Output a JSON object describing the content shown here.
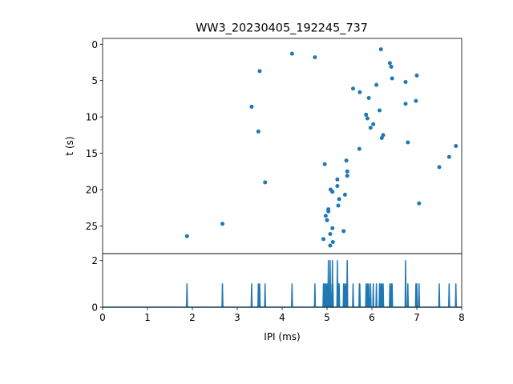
{
  "chart_data": [
    {
      "type": "scatter",
      "title": "WW3_20230405_192245_737",
      "xlabel": "",
      "ylabel": "t (s)",
      "xlim": [
        0,
        8
      ],
      "ylim": [
        28.8,
        -0.8
      ],
      "y_inverted": true,
      "yticks": [
        0,
        5,
        10,
        15,
        20,
        25
      ],
      "color": "#1f77b4",
      "points": [
        [
          6.2,
          0.7
        ],
        [
          4.22,
          1.3
        ],
        [
          4.73,
          1.8
        ],
        [
          6.4,
          2.6
        ],
        [
          6.43,
          3.1
        ],
        [
          3.5,
          3.7
        ],
        [
          7.0,
          4.3
        ],
        [
          6.45,
          4.7
        ],
        [
          6.75,
          5.2
        ],
        [
          6.1,
          5.6
        ],
        [
          5.58,
          6.1
        ],
        [
          5.73,
          6.6
        ],
        [
          5.93,
          7.4
        ],
        [
          6.98,
          7.8
        ],
        [
          6.75,
          8.2
        ],
        [
          3.32,
          8.6
        ],
        [
          6.17,
          9.1
        ],
        [
          5.87,
          9.7
        ],
        [
          5.9,
          10.2
        ],
        [
          6.03,
          11.0
        ],
        [
          5.97,
          11.5
        ],
        [
          3.47,
          12.0
        ],
        [
          6.25,
          12.5
        ],
        [
          6.22,
          12.9
        ],
        [
          6.8,
          13.5
        ],
        [
          7.87,
          14.0
        ],
        [
          5.72,
          14.4
        ],
        [
          7.72,
          15.5
        ],
        [
          5.43,
          16.0
        ],
        [
          4.95,
          16.5
        ],
        [
          7.5,
          16.9
        ],
        [
          5.45,
          17.5
        ],
        [
          5.45,
          18.1
        ],
        [
          5.23,
          18.6
        ],
        [
          3.62,
          19.0
        ],
        [
          5.23,
          19.5
        ],
        [
          5.08,
          20.0
        ],
        [
          5.12,
          20.3
        ],
        [
          5.4,
          20.7
        ],
        [
          5.27,
          21.3
        ],
        [
          7.05,
          21.9
        ],
        [
          5.25,
          22.2
        ],
        [
          5.03,
          22.7
        ],
        [
          5.03,
          23.0
        ],
        [
          4.97,
          23.6
        ],
        [
          5.0,
          24.2
        ],
        [
          2.67,
          24.7
        ],
        [
          5.12,
          25.3
        ],
        [
          5.37,
          25.7
        ],
        [
          5.07,
          26.1
        ],
        [
          1.88,
          26.4
        ],
        [
          4.92,
          26.8
        ],
        [
          5.13,
          27.2
        ],
        [
          5.07,
          27.7
        ]
      ]
    },
    {
      "type": "line",
      "title": "",
      "xlabel": "IPI (ms)",
      "ylabel": "",
      "xlim": [
        0,
        8
      ],
      "ylim": [
        0,
        2.3
      ],
      "xticks": [
        0,
        1,
        2,
        3,
        4,
        5,
        6,
        7,
        8
      ],
      "yticks": [
        0,
        2
      ],
      "color": "#1f77b4",
      "bin_width": 0.02,
      "baseline": 0,
      "spikes": [
        [
          1.88,
          1
        ],
        [
          2.67,
          1
        ],
        [
          3.32,
          1
        ],
        [
          3.47,
          1
        ],
        [
          3.5,
          1
        ],
        [
          3.62,
          1
        ],
        [
          4.22,
          1
        ],
        [
          4.73,
          1
        ],
        [
          4.92,
          1
        ],
        [
          4.95,
          1
        ],
        [
          4.97,
          1
        ],
        [
          5.0,
          1
        ],
        [
          5.03,
          2
        ],
        [
          5.07,
          2
        ],
        [
          5.08,
          1
        ],
        [
          5.12,
          2
        ],
        [
          5.13,
          1
        ],
        [
          5.23,
          2
        ],
        [
          5.25,
          1
        ],
        [
          5.27,
          1
        ],
        [
          5.37,
          1
        ],
        [
          5.4,
          1
        ],
        [
          5.43,
          1
        ],
        [
          5.45,
          2
        ],
        [
          5.58,
          1
        ],
        [
          5.72,
          1
        ],
        [
          5.73,
          1
        ],
        [
          5.87,
          1
        ],
        [
          5.9,
          1
        ],
        [
          5.93,
          1
        ],
        [
          5.97,
          1
        ],
        [
          6.03,
          1
        ],
        [
          6.1,
          1
        ],
        [
          6.17,
          1
        ],
        [
          6.2,
          1
        ],
        [
          6.22,
          1
        ],
        [
          6.25,
          1
        ],
        [
          6.4,
          1
        ],
        [
          6.43,
          1
        ],
        [
          6.45,
          1
        ],
        [
          6.75,
          2
        ],
        [
          6.8,
          1
        ],
        [
          6.98,
          1
        ],
        [
          7.0,
          1
        ],
        [
          7.05,
          1
        ],
        [
          7.5,
          1
        ],
        [
          7.72,
          1
        ],
        [
          7.87,
          1
        ]
      ]
    }
  ]
}
